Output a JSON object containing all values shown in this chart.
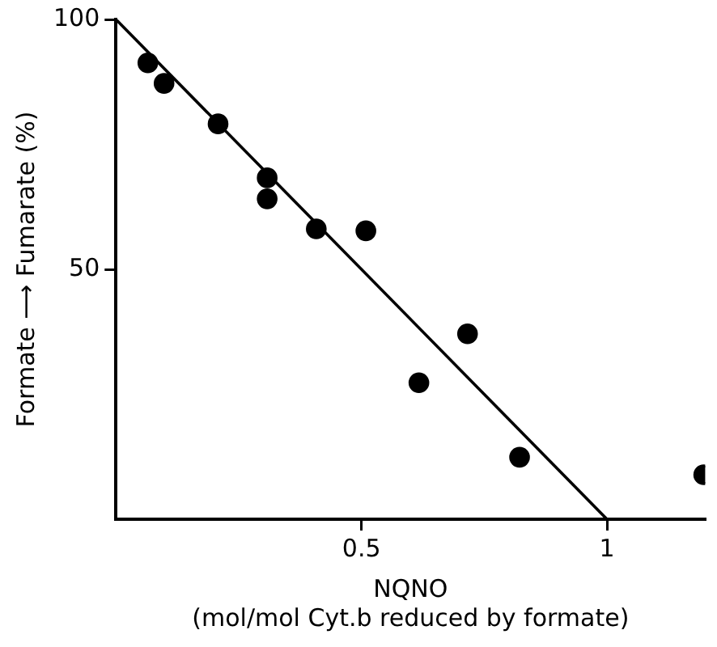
{
  "chart_data": {
    "type": "scatter",
    "xlabel": "NQNO\n(mol/mol Cyt.b reduced by formate)",
    "ylabel": "Formate ⟶ Fumarate (%)",
    "xlim": [
      0,
      1.2
    ],
    "ylim": [
      0,
      100
    ],
    "xticks": [
      {
        "value": 0.5,
        "label": "0.5"
      },
      1
    ],
    "yticks": [
      50,
      100
    ],
    "grid": false,
    "legend": false,
    "marker": "circle",
    "series": [
      {
        "color": "#000000",
        "x": [
          0.065,
          0.098,
          0.208,
          0.308,
          0.308,
          0.408,
          0.509,
          0.617,
          0.716,
          0.822,
          1.197
        ],
        "values": [
          91.3,
          87.2,
          79.1,
          68.3,
          64.1,
          58.1,
          57.7,
          27.3,
          37.1,
          12.4,
          8.9
        ]
      },
      {
        "type": "line",
        "marker": "none",
        "color": "#000000",
        "x": [
          0,
          1
        ],
        "values": [
          100,
          0
        ]
      }
    ]
  }
}
